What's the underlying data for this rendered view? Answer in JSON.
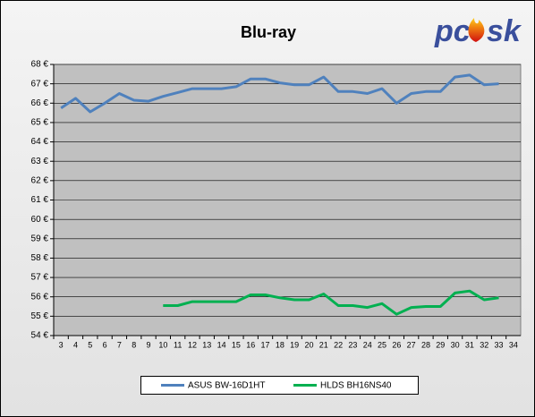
{
  "chart_data": {
    "type": "line",
    "title": "Blu-ray",
    "logo": {
      "left": "pc",
      "right": "sk"
    },
    "categories": [
      3,
      4,
      5,
      6,
      7,
      8,
      9,
      10,
      11,
      12,
      13,
      14,
      15,
      16,
      17,
      18,
      19,
      20,
      21,
      22,
      23,
      24,
      25,
      26,
      27,
      28,
      29,
      30,
      31,
      32,
      33,
      34
    ],
    "series": [
      {
        "name": "ASUS BW-16D1HT",
        "color": "#4f81bd",
        "values": [
          65.75,
          66.25,
          65.55,
          66.0,
          66.5,
          66.15,
          66.1,
          66.35,
          66.55,
          66.75,
          66.75,
          66.75,
          66.85,
          67.25,
          67.25,
          67.05,
          66.95,
          66.95,
          67.35,
          66.6,
          66.6,
          66.5,
          66.75,
          66.0,
          66.5,
          66.6,
          66.6,
          67.35,
          67.45,
          66.95,
          67.0,
          null
        ]
      },
      {
        "name": "HLDS BH16NS40",
        "color": "#00b050",
        "values": [
          null,
          null,
          null,
          null,
          null,
          null,
          null,
          55.55,
          55.55,
          55.75,
          55.75,
          55.75,
          55.75,
          56.1,
          56.1,
          55.95,
          55.85,
          55.85,
          56.15,
          55.55,
          55.55,
          55.45,
          55.65,
          55.1,
          55.45,
          55.5,
          55.5,
          56.2,
          56.3,
          55.85,
          55.95,
          null
        ]
      }
    ],
    "ylim": [
      54,
      68
    ],
    "yticks": [
      {
        "value": 54,
        "label": "54 €"
      },
      {
        "value": 55,
        "label": "55 €"
      },
      {
        "value": 56,
        "label": "56 €"
      },
      {
        "value": 57,
        "label": "57 €"
      },
      {
        "value": 58,
        "label": "58 €"
      },
      {
        "value": 59,
        "label": "59 €"
      },
      {
        "value": 60,
        "label": "60 €"
      },
      {
        "value": 61,
        "label": "61 €"
      },
      {
        "value": 62,
        "label": "62 €"
      },
      {
        "value": 63,
        "label": "63 €"
      },
      {
        "value": 64,
        "label": "64 €"
      },
      {
        "value": 65,
        "label": "65 €"
      },
      {
        "value": 66,
        "label": "66 €"
      },
      {
        "value": 67,
        "label": "67 €"
      },
      {
        "value": 68,
        "label": "68 €"
      }
    ],
    "grid": true,
    "legend": "bottom"
  }
}
